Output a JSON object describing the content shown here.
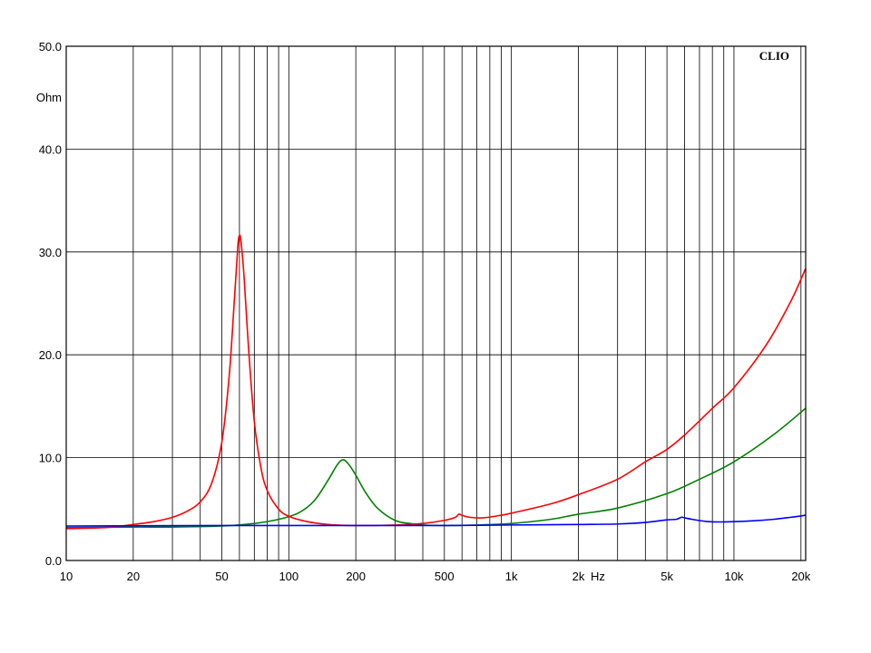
{
  "chart_data": {
    "type": "line",
    "brand": "CLIO",
    "x_scale": "log",
    "xlim": [
      10,
      21000
    ],
    "ylim": [
      0,
      50
    ],
    "ylabel": "Ohm",
    "xlabel": "Hz",
    "grid": true,
    "x_ticks": [
      {
        "value": 10,
        "label": "10"
      },
      {
        "value": 20,
        "label": "20"
      },
      {
        "value": 50,
        "label": "50"
      },
      {
        "value": 100,
        "label": "100"
      },
      {
        "value": 200,
        "label": "200"
      },
      {
        "value": 500,
        "label": "500"
      },
      {
        "value": 1000,
        "label": "1k"
      },
      {
        "value": 2000,
        "label": "2k"
      },
      {
        "value": 5000,
        "label": "5k"
      },
      {
        "value": 10000,
        "label": "10k"
      },
      {
        "value": 20000,
        "label": "20k"
      }
    ],
    "y_ticks": [
      {
        "value": 0,
        "label": "0.0"
      },
      {
        "value": 10,
        "label": "10.0"
      },
      {
        "value": 20,
        "label": "20.0"
      },
      {
        "value": 30,
        "label": "30.0"
      },
      {
        "value": 40,
        "label": "40.0"
      },
      {
        "value": 50,
        "label": "50.0"
      }
    ],
    "series": [
      {
        "color": "#008000",
        "points": [
          [
            10,
            3.2
          ],
          [
            20,
            3.25
          ],
          [
            30,
            3.25
          ],
          [
            50,
            3.35
          ],
          [
            70,
            3.6
          ],
          [
            90,
            4.0
          ],
          [
            110,
            4.6
          ],
          [
            130,
            5.8
          ],
          [
            150,
            7.8
          ],
          [
            165,
            9.3
          ],
          [
            175,
            9.8
          ],
          [
            185,
            9.4
          ],
          [
            200,
            8.3
          ],
          [
            220,
            6.7
          ],
          [
            250,
            5.1
          ],
          [
            300,
            3.9
          ],
          [
            350,
            3.6
          ],
          [
            400,
            3.45
          ],
          [
            500,
            3.4
          ],
          [
            700,
            3.45
          ],
          [
            1000,
            3.6
          ],
          [
            1500,
            4.0
          ],
          [
            2000,
            4.5
          ],
          [
            3000,
            5.1
          ],
          [
            5000,
            6.5
          ],
          [
            7000,
            7.9
          ],
          [
            10000,
            9.6
          ],
          [
            15000,
            12.2
          ],
          [
            21000,
            14.8
          ]
        ]
      },
      {
        "color": "#ff0000",
        "points": [
          [
            10,
            3.1
          ],
          [
            15,
            3.2
          ],
          [
            20,
            3.5
          ],
          [
            25,
            3.8
          ],
          [
            30,
            4.2
          ],
          [
            35,
            4.8
          ],
          [
            40,
            5.7
          ],
          [
            45,
            7.5
          ],
          [
            50,
            11.5
          ],
          [
            54,
            18.0
          ],
          [
            57,
            25.5
          ],
          [
            59,
            30.5
          ],
          [
            60,
            31.6
          ],
          [
            61,
            31.0
          ],
          [
            63,
            27.5
          ],
          [
            66,
            20.5
          ],
          [
            70,
            13.5
          ],
          [
            75,
            9.0
          ],
          [
            80,
            6.8
          ],
          [
            90,
            5.0
          ],
          [
            100,
            4.3
          ],
          [
            120,
            3.8
          ],
          [
            150,
            3.5
          ],
          [
            200,
            3.4
          ],
          [
            300,
            3.45
          ],
          [
            400,
            3.6
          ],
          [
            500,
            3.9
          ],
          [
            560,
            4.2
          ],
          [
            580,
            4.5
          ],
          [
            600,
            4.4
          ],
          [
            650,
            4.2
          ],
          [
            750,
            4.15
          ],
          [
            900,
            4.4
          ],
          [
            1000,
            4.6
          ],
          [
            1500,
            5.5
          ],
          [
            2000,
            6.4
          ],
          [
            3000,
            7.9
          ],
          [
            4000,
            9.6
          ],
          [
            5000,
            10.8
          ],
          [
            6000,
            12.2
          ],
          [
            8000,
            14.8
          ],
          [
            10000,
            16.8
          ],
          [
            14000,
            21.0
          ],
          [
            18000,
            25.2
          ],
          [
            21000,
            28.4
          ]
        ]
      },
      {
        "color": "#0000ff",
        "points": [
          [
            10,
            3.35
          ],
          [
            50,
            3.4
          ],
          [
            100,
            3.4
          ],
          [
            200,
            3.4
          ],
          [
            500,
            3.4
          ],
          [
            1000,
            3.45
          ],
          [
            2000,
            3.5
          ],
          [
            3000,
            3.55
          ],
          [
            4000,
            3.7
          ],
          [
            5000,
            3.95
          ],
          [
            5500,
            4.0
          ],
          [
            5800,
            4.2
          ],
          [
            6000,
            4.15
          ],
          [
            6500,
            4.0
          ],
          [
            7500,
            3.8
          ],
          [
            9000,
            3.75
          ],
          [
            12000,
            3.85
          ],
          [
            15000,
            4.0
          ],
          [
            18000,
            4.2
          ],
          [
            21000,
            4.4
          ]
        ]
      }
    ]
  }
}
